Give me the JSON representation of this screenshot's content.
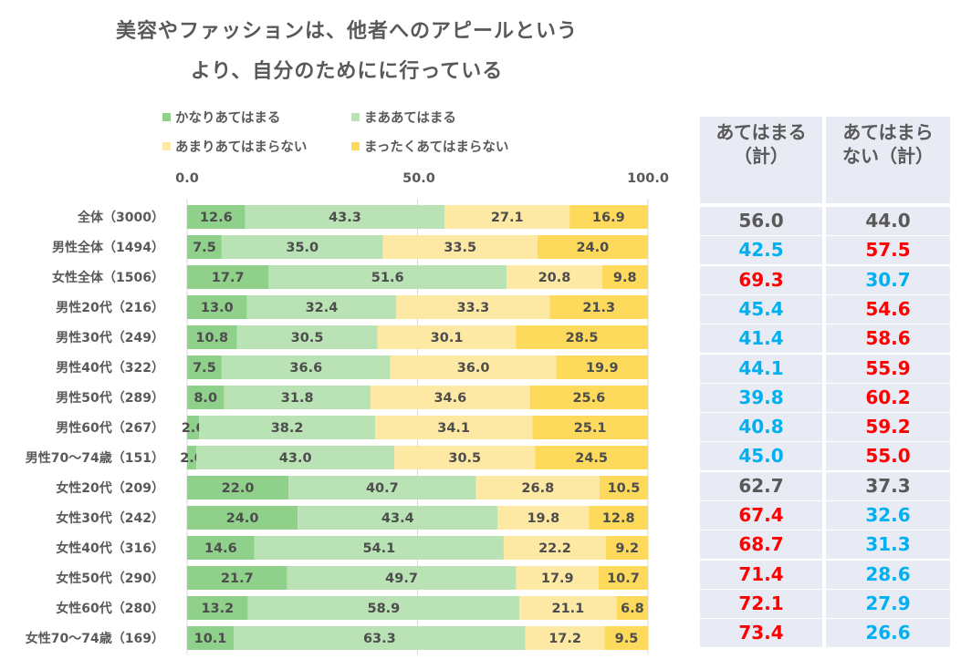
{
  "title_lines": [
    "美容やファッションは、他者へのアピールという",
    "より、自分のためにに行っている"
  ],
  "legend": [
    {
      "label": "かなりあてはまる",
      "color": "#8fd18a"
    },
    {
      "label": "まああてはまる",
      "color": "#b9e2b5"
    },
    {
      "label": "あまりあてはまらない",
      "color": "#fde9a4"
    },
    {
      "label": "まったくあてはまらない",
      "color": "#fdd95c"
    }
  ],
  "table": {
    "headers": [
      "あてはまる\n（計）",
      "あてはまら\nない（計）"
    ],
    "header_lines": [
      [
        "あてはまる",
        "（計）"
      ],
      [
        "あてはまら",
        "ない（計）"
      ]
    ],
    "colors": {
      "neutral": "#595959",
      "high": "#ff0000",
      "low": "#00b0f0"
    }
  },
  "chart_data": {
    "type": "bar",
    "orientation": "horizontal-stacked-100",
    "title": "美容やファッションは、他者へのアピールというより、自分のために行っている",
    "xlabel": "",
    "ylabel": "",
    "xlim": [
      0,
      100
    ],
    "x_ticks": [
      "0.0",
      "50.0",
      "100.0"
    ],
    "grid": true,
    "legend_position": "top",
    "categories": [
      "全体（3000）",
      "男性全体（1494）",
      "女性全体（1506）",
      "男性20代（216）",
      "男性30代（249）",
      "男性40代（322）",
      "男性50代（289）",
      "男性60代（267）",
      "男性70～74歳（151）",
      "女性20代（209）",
      "女性30代（242）",
      "女性40代（316）",
      "女性50代（290）",
      "女性60代（280）",
      "女性70～74歳（169）"
    ],
    "series": [
      {
        "name": "かなりあてはまる",
        "color": "#8fd18a",
        "values": [
          12.6,
          7.5,
          17.7,
          13.0,
          10.8,
          7.5,
          8.0,
          2.6,
          2.0,
          22.0,
          24.0,
          14.6,
          21.7,
          13.2,
          10.1
        ]
      },
      {
        "name": "まああてはまる",
        "color": "#b9e2b5",
        "values": [
          43.3,
          35.0,
          51.6,
          32.4,
          30.5,
          36.6,
          31.8,
          38.2,
          43.0,
          40.7,
          43.4,
          54.1,
          49.7,
          58.9,
          63.3
        ]
      },
      {
        "name": "あまりあてはまらない",
        "color": "#fde9a4",
        "values": [
          27.1,
          33.5,
          20.8,
          33.3,
          30.1,
          36.0,
          34.6,
          34.1,
          30.5,
          26.8,
          19.8,
          22.2,
          17.9,
          21.1,
          17.2
        ]
      },
      {
        "name": "まったくあてはまらない",
        "color": "#fdd95c",
        "values": [
          16.9,
          24.0,
          9.8,
          21.3,
          28.5,
          19.9,
          25.6,
          25.1,
          24.5,
          10.5,
          12.8,
          9.2,
          10.7,
          6.8,
          9.5
        ]
      }
    ],
    "totals": {
      "applies_total": [
        "56.0",
        "42.5",
        "69.3",
        "45.4",
        "41.4",
        "44.1",
        "39.8",
        "40.8",
        "45.0",
        "62.7",
        "67.4",
        "68.7",
        "71.4",
        "72.1",
        "73.4"
      ],
      "not_applies_total": [
        "44.0",
        "57.5",
        "30.7",
        "54.6",
        "58.6",
        "55.9",
        "60.2",
        "59.2",
        "55.0",
        "37.3",
        "32.6",
        "31.3",
        "28.6",
        "27.9",
        "26.6"
      ],
      "applies_color_role": [
        "neutral",
        "low",
        "high",
        "low",
        "low",
        "low",
        "low",
        "low",
        "low",
        "neutral",
        "high",
        "high",
        "high",
        "high",
        "high"
      ],
      "not_applies_color_role": [
        "neutral",
        "high",
        "low",
        "high",
        "high",
        "high",
        "high",
        "high",
        "high",
        "neutral",
        "low",
        "low",
        "low",
        "low",
        "low"
      ]
    }
  }
}
